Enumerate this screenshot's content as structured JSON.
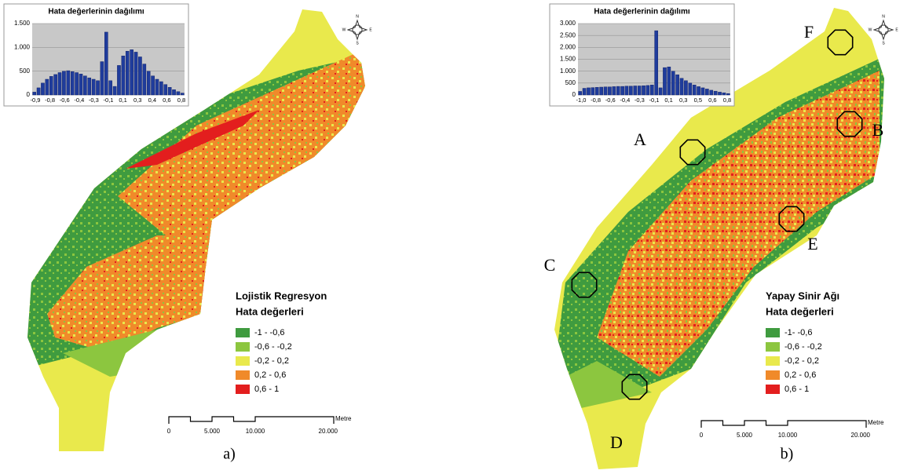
{
  "panels": [
    {
      "histogram": {
        "type": "bar",
        "title": "Hata değerlerinin dağılımı",
        "ylim": [
          0,
          1500
        ],
        "yticks": [
          0,
          500,
          {
            "value": 1000,
            "label": "1.000"
          },
          {
            "value": 1500,
            "label": "1.500"
          }
        ],
        "xtick_labels": [
          "-0,9",
          "-0,8",
          "-0,6",
          "-0,4",
          "-0,3",
          "-0,1",
          "0,1",
          "0,3",
          "0,4",
          "0,6",
          "0,8"
        ],
        "color": "#1f3c9c",
        "values": [
          60,
          150,
          250,
          330,
          390,
          430,
          470,
          500,
          510,
          490,
          470,
          440,
          400,
          360,
          330,
          300,
          700,
          1320,
          300,
          180,
          620,
          820,
          920,
          950,
          900,
          800,
          650,
          500,
          400,
          330,
          280,
          220,
          160,
          110,
          70,
          40
        ]
      },
      "compass": [
        "N",
        "W",
        "E",
        "S"
      ],
      "legend": {
        "title": [
          "Lojistik Regresyon",
          "Hata değerleri"
        ],
        "items": [
          {
            "label": "-1 - -0,6",
            "color": "#3f9b3f"
          },
          {
            "label": "-0,6 - -0,2",
            "color": "#8cc63f"
          },
          {
            "label": "-0,2 - 0,2",
            "color": "#e9e94c"
          },
          {
            "label": "0,2 - 0,6",
            "color": "#f08a2a"
          },
          {
            "label": "0,6 - 1",
            "color": "#e31e1e"
          }
        ]
      },
      "scale": {
        "labels": [
          "0",
          "5.000",
          "10.000",
          "20.000"
        ],
        "unit": "Metre"
      },
      "markers": [],
      "caption": "a)"
    },
    {
      "histogram": {
        "type": "bar",
        "title": "Hata değerlerinin dağılımı",
        "ylim": [
          0,
          3000
        ],
        "yticks": [
          0,
          500,
          {
            "value": 1000,
            "label": "1.000"
          },
          {
            "value": 1500,
            "label": "1.500"
          },
          {
            "value": 2000,
            "label": "2.000"
          },
          {
            "value": 2500,
            "label": "2.500"
          },
          {
            "value": 3000,
            "label": "3.000"
          }
        ],
        "xtick_labels": [
          "-1,0",
          "-0,8",
          "-0,6",
          "-0,4",
          "-0,3",
          "-0,1",
          "0,1",
          "0,3",
          "0,5",
          "0,6",
          "0,8"
        ],
        "color": "#1f3c9c",
        "values": [
          150,
          280,
          300,
          310,
          320,
          330,
          340,
          340,
          350,
          360,
          360,
          370,
          370,
          380,
          380,
          390,
          400,
          420,
          2700,
          300,
          1150,
          1180,
          1000,
          850,
          700,
          600,
          500,
          420,
          350,
          300,
          250,
          200,
          160,
          120,
          90,
          60
        ]
      },
      "compass": [
        "N",
        "W",
        "E",
        "S"
      ],
      "legend": {
        "title": [
          "Yapay Sinir Ağı",
          "Hata değerleri"
        ],
        "items": [
          {
            "label": "-1- -0,6",
            "color": "#3f9b3f"
          },
          {
            "label": "-0,6 - -0,2",
            "color": "#8cc63f"
          },
          {
            "label": "-0,2 - 0,2",
            "color": "#e9e94c"
          },
          {
            "label": "0,2 - 0,6",
            "color": "#f08a2a"
          },
          {
            "label": "0,6 - 1",
            "color": "#e31e1e"
          }
        ]
      },
      "scale": {
        "labels": [
          "0",
          "5.000",
          "10.000",
          "20.000"
        ],
        "unit": "Metre"
      },
      "markers": [
        "A",
        "B",
        "C",
        "D",
        "E",
        "F"
      ],
      "caption": "b)"
    }
  ]
}
